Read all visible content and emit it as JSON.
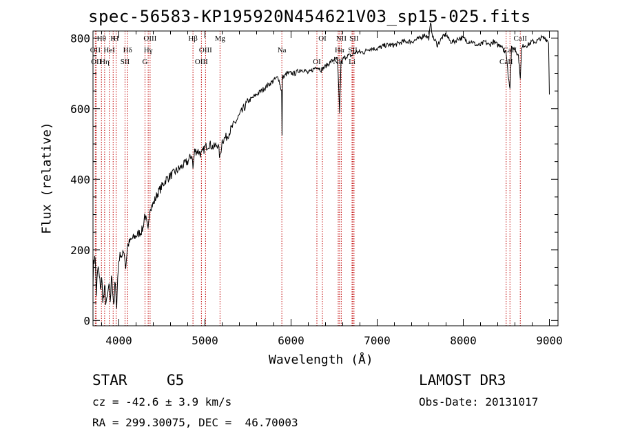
{
  "chart_data": {
    "type": "line",
    "title": "spec-56583-KP195920N454621V03_sp15-025.fits",
    "xlabel": "Wavelength (Å)",
    "ylabel": "Flux (relative)",
    "xlim": [
      3700,
      9100
    ],
    "ylim": [
      -15,
      820
    ],
    "xticks": [
      4000,
      5000,
      6000,
      7000,
      8000,
      9000
    ],
    "yticks": [
      0,
      200,
      400,
      600,
      800
    ],
    "grid": false,
    "series": [
      {
        "x": [
          3700,
          3720,
          3740,
          3760,
          3780,
          3800,
          3820,
          3840,
          3860,
          3880,
          3900,
          3920,
          3940,
          3960,
          3970,
          3980,
          4000,
          4020,
          4040,
          4060,
          4080,
          4100,
          4120,
          4150,
          4200,
          4250,
          4280,
          4300,
          4320,
          4340,
          4360,
          4400,
          4450,
          4500,
          4550,
          4600,
          4650,
          4700,
          4750,
          4800,
          4850,
          4861,
          4880,
          4920,
          4960,
          5000,
          5050,
          5100,
          5150,
          5175,
          5200,
          5250,
          5300,
          5350,
          5400,
          5450,
          5500,
          5550,
          5600,
          5650,
          5700,
          5750,
          5800,
          5850,
          5890,
          5895,
          5900,
          5920,
          5950,
          6000,
          6050,
          6100,
          6150,
          6200,
          6250,
          6300,
          6350,
          6400,
          6450,
          6500,
          6540,
          6563,
          6580,
          6600,
          6650,
          6700,
          6750,
          6800,
          6850,
          6900,
          6950,
          7000,
          7100,
          7200,
          7300,
          7400,
          7500,
          7550,
          7600,
          7620,
          7650,
          7680,
          7700,
          7750,
          7800,
          7850,
          7900,
          7950,
          8000,
          8050,
          8100,
          8150,
          8200,
          8250,
          8300,
          8350,
          8400,
          8450,
          8480,
          8498,
          8520,
          8542,
          8560,
          8600,
          8640,
          8662,
          8680,
          8700,
          8750,
          8800,
          8850,
          8900,
          8950,
          8990,
          9000
        ],
        "y": [
          120,
          200,
          80,
          150,
          100,
          110,
          60,
          80,
          40,
          90,
          60,
          130,
          50,
          100,
          30,
          90,
          170,
          190,
          180,
          200,
          150,
          210,
          220,
          230,
          240,
          250,
          260,
          300,
          280,
          250,
          320,
          330,
          360,
          380,
          400,
          410,
          420,
          430,
          440,
          450,
          470,
          430,
          480,
          480,
          470,
          490,
          500,
          490,
          500,
          460,
          510,
          520,
          540,
          560,
          580,
          600,
          620,
          630,
          640,
          650,
          660,
          670,
          680,
          690,
          650,
          520,
          690,
          690,
          700,
          700,
          700,
          710,
          710,
          700,
          710,
          720,
          710,
          720,
          730,
          740,
          740,
          590,
          730,
          740,
          750,
          750,
          760,
          760,
          760,
          770,
          770,
          770,
          780,
          780,
          790,
          790,
          800,
          810,
          800,
          840,
          800,
          790,
          780,
          800,
          810,
          790,
          790,
          800,
          800,
          790,
          790,
          780,
          780,
          790,
          780,
          790,
          780,
          780,
          760,
          760,
          700,
          660,
          770,
          770,
          750,
          690,
          770,
          780,
          780,
          790,
          790,
          800,
          800,
          790,
          640
        ]
      }
    ],
    "lines": [
      {
        "label": "Hθ",
        "x": 3798
      },
      {
        "label": "OII",
        "x": 3727
      },
      {
        "label": "OII",
        "x": 3738
      },
      {
        "label": "K",
        "x": 3934
      },
      {
        "label": "HeI",
        "x": 3889
      },
      {
        "label": "Hη",
        "x": 3835
      },
      {
        "label": "H",
        "x": 3969
      },
      {
        "label": "Hδ",
        "x": 4102
      },
      {
        "label": "SII",
        "x": 4072
      },
      {
        "label": "OIII",
        "x": 4363
      },
      {
        "label": "Hγ",
        "x": 4341
      },
      {
        "label": "G",
        "x": 4304
      },
      {
        "label": "Hβ",
        "x": 4861
      },
      {
        "label": "OIII",
        "x": 5007
      },
      {
        "label": "OIII",
        "x": 4959
      },
      {
        "label": "Mg",
        "x": 5175
      },
      {
        "label": "Na",
        "x": 5893
      },
      {
        "label": "OI",
        "x": 6300
      },
      {
        "label": "OI",
        "x": 6364
      },
      {
        "label": "Hα",
        "x": 6563
      },
      {
        "label": "NII",
        "x": 6548
      },
      {
        "label": "NII",
        "x": 6583
      },
      {
        "label": "SII",
        "x": 6717
      },
      {
        "label": "Li",
        "x": 6708
      },
      {
        "label": "SII",
        "x": 6731
      },
      {
        "label": "CaII",
        "x": 8542
      },
      {
        "label": "CaII",
        "x": 8498
      },
      {
        "label": "CaII",
        "x": 8662
      }
    ]
  },
  "info": {
    "object_class": "STAR",
    "subclass": "G5",
    "survey": "LAMOST DR3",
    "velocity": "cz = -42.6 ± 3.9 km/s",
    "obs_date": "Obs-Date: 20131017",
    "coordinates": "RA = 299.30075, DEC =  46.70003"
  }
}
